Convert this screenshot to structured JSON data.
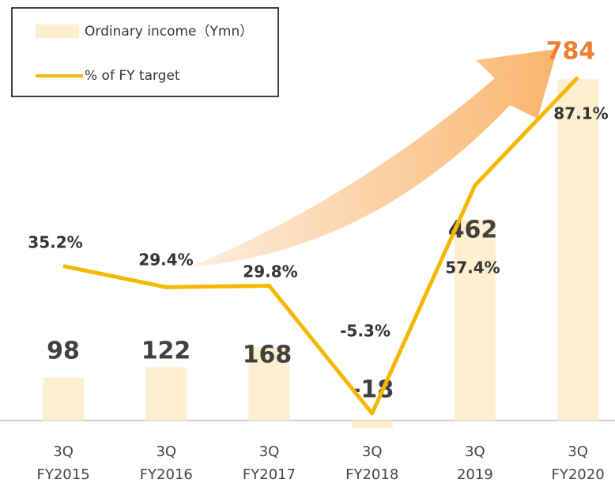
{
  "chart_data": {
    "type": "bar_line",
    "categories": [
      [
        "3Q",
        "FY2015"
      ],
      [
        "3Q",
        "FY2016"
      ],
      [
        "3Q",
        "FY2017"
      ],
      [
        "3Q",
        "FY2018"
      ],
      [
        "3Q",
        "2019"
      ],
      [
        "3Q",
        "FY2020"
      ]
    ],
    "series": [
      {
        "name": "Ordinary income（Ymn）",
        "type": "bar",
        "color": "#fdefcf",
        "values": [
          98,
          122,
          168,
          -18,
          462,
          784
        ],
        "value_label_colors": [
          "#404040",
          "#404040",
          "#404040",
          "#404040",
          "#404040",
          "#ed7d31"
        ]
      },
      {
        "name": "% of FY target",
        "type": "line",
        "color": "#f5b800",
        "axis": "y2",
        "values": [
          35.2,
          29.4,
          29.8,
          -5.3,
          57.4,
          87.1
        ],
        "value_labels": [
          "35.2%",
          "29.4%",
          "29.8%",
          "-5.3%",
          "57.4%",
          "87.1%"
        ]
      }
    ],
    "ylim": [
      -15,
      930
    ],
    "y2lim": [
      -9,
      104
    ],
    "legend": "upper left"
  }
}
